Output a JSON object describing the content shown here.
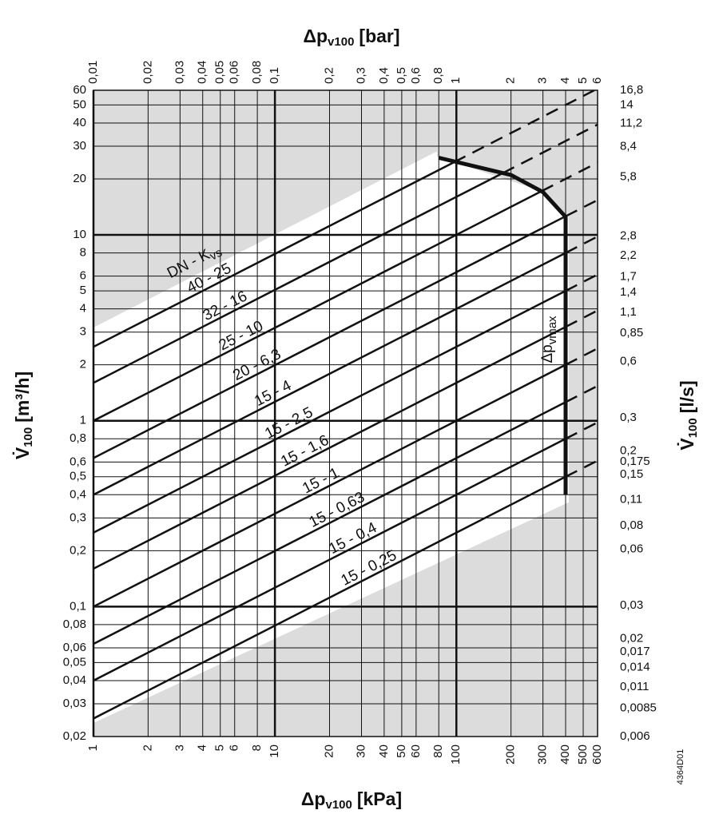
{
  "chart_data": {
    "type": "line",
    "x_axis_title": {
      "text": "Δp",
      "sub": "v100",
      "unit": "[kPa]"
    },
    "x2_axis_title": {
      "text": "Δp",
      "sub": "v100",
      "unit": "[bar]"
    },
    "y_axis_title": {
      "text": "V̇",
      "sub": "100",
      "unit": "[m³/h]"
    },
    "y2_axis_title": {
      "text": "V̇",
      "sub": "100",
      "unit": "[l/s]"
    },
    "log_x": true,
    "log_y": true,
    "grid": true,
    "xlim": [
      1,
      600
    ],
    "xticks": [
      1,
      2,
      3,
      4,
      5,
      6,
      8,
      10,
      20,
      30,
      40,
      50,
      60,
      80,
      100,
      200,
      300,
      400,
      500,
      600
    ],
    "x2lim": [
      0.01,
      6
    ],
    "x2ticks": [
      {
        "value": 0.01,
        "label": "0,01"
      },
      {
        "value": 0.02,
        "label": "0,02"
      },
      {
        "value": 0.03,
        "label": "0,03"
      },
      {
        "value": 0.04,
        "label": "0,04"
      },
      {
        "value": 0.05,
        "label": "0,05"
      },
      {
        "value": 0.06,
        "label": "0,06"
      },
      {
        "value": 0.08,
        "label": "0,08"
      },
      {
        "value": 0.1,
        "label": "0,1"
      },
      {
        "value": 0.2,
        "label": "0,2"
      },
      {
        "value": 0.3,
        "label": "0,3"
      },
      {
        "value": 0.4,
        "label": "0,4"
      },
      {
        "value": 0.5,
        "label": "0,5"
      },
      {
        "value": 0.6,
        "label": "0,6"
      },
      {
        "value": 0.8,
        "label": "0,8"
      },
      1,
      2,
      3,
      4,
      5,
      6
    ],
    "ylim": [
      0.02,
      60
    ],
    "yticks": [
      60,
      50,
      40,
      30,
      20,
      10,
      8,
      6,
      5,
      4,
      3,
      2,
      1,
      {
        "value": 0.8,
        "label": "0,8"
      },
      {
        "value": 0.6,
        "label": "0,6"
      },
      {
        "value": 0.5,
        "label": "0,5"
      },
      {
        "value": 0.4,
        "label": "0,4"
      },
      {
        "value": 0.3,
        "label": "0,3"
      },
      {
        "value": 0.2,
        "label": "0,2"
      },
      {
        "value": 0.1,
        "label": "0,1"
      },
      {
        "value": 0.08,
        "label": "0,08"
      },
      {
        "value": 0.06,
        "label": "0,06"
      },
      {
        "value": 0.05,
        "label": "0,05"
      },
      {
        "value": 0.04,
        "label": "0,04"
      },
      {
        "value": 0.03,
        "label": "0,03"
      },
      {
        "value": 0.02,
        "label": "0,02"
      }
    ],
    "y2lim": [
      0.006,
      16.8
    ],
    "y2ticks": [
      {
        "value": 16.8,
        "label": "16,8"
      },
      14,
      {
        "value": 11.2,
        "label": "11,2"
      },
      {
        "value": 8.4,
        "label": "8,4"
      },
      {
        "value": 5.8,
        "label": "5,8"
      },
      {
        "value": 2.8,
        "label": "2,8"
      },
      {
        "value": 2.2,
        "label": "2,2"
      },
      {
        "value": 1.7,
        "label": "1,7"
      },
      {
        "value": 1.4,
        "label": "1,4"
      },
      {
        "value": 1.1,
        "label": "1,1"
      },
      {
        "value": 0.85,
        "label": "0,85"
      },
      {
        "value": 0.6,
        "label": "0,6"
      },
      {
        "value": 0.3,
        "label": "0,3"
      },
      {
        "value": 0.2,
        "label": "0,2"
      },
      {
        "value": 0.175,
        "label": "0,175"
      },
      {
        "value": 0.15,
        "label": "0,15"
      },
      {
        "value": 0.11,
        "label": "0,11"
      },
      {
        "value": 0.08,
        "label": "0,08"
      },
      {
        "value": 0.06,
        "label": "0,06"
      },
      {
        "value": 0.03,
        "label": "0,03"
      },
      {
        "value": 0.02,
        "label": "0,02"
      },
      {
        "value": 0.017,
        "label": "0,017"
      },
      {
        "value": 0.014,
        "label": "0,014"
      },
      {
        "value": 0.011,
        "label": "0,011"
      },
      {
        "value": 0.0085,
        "label": "0,0085"
      },
      {
        "value": 0.006,
        "label": "0,006"
      }
    ],
    "legend_title": {
      "text": "DN - K",
      "sub": "vs"
    },
    "segments": [
      "solid",
      "dashed"
    ],
    "line_color": "#111111",
    "shade_color": "#dcdcdc",
    "series": [
      {
        "name": "40 - 25",
        "x": [
          1,
          97,
          576
        ],
        "values": [
          2.5,
          24.6,
          60
        ]
      },
      {
        "name": "32 - 16",
        "x": [
          1,
          180,
          600
        ],
        "values": [
          1.6,
          21.5,
          39.2
        ]
      },
      {
        "name": "25 - 10",
        "x": [
          1,
          295,
          600
        ],
        "values": [
          1,
          17.2,
          24.5
        ]
      },
      {
        "name": "20 - 6,3",
        "x": [
          1,
          400,
          600
        ],
        "values": [
          0.63,
          12.6,
          15.4
        ]
      },
      {
        "name": "15 - 4",
        "x": [
          1,
          400,
          600
        ],
        "values": [
          0.4,
          8,
          9.8
        ]
      },
      {
        "name": "15 - 2,5",
        "x": [
          1,
          400,
          600
        ],
        "values": [
          0.25,
          5,
          6.12
        ]
      },
      {
        "name": "15 - 1,6",
        "x": [
          1,
          400,
          600
        ],
        "values": [
          0.16,
          3.2,
          3.92
        ]
      },
      {
        "name": "15 - 1",
        "x": [
          1,
          400,
          600
        ],
        "values": [
          0.1,
          2,
          2.45
        ]
      },
      {
        "name": "15 - 0,63",
        "x": [
          1,
          400,
          600
        ],
        "values": [
          0.063,
          1.26,
          1.54
        ]
      },
      {
        "name": "15 - 0,4",
        "x": [
          1,
          400,
          600
        ],
        "values": [
          0.04,
          0.8,
          0.98
        ]
      },
      {
        "name": "15 - 0,25",
        "x": [
          1,
          400,
          600
        ],
        "values": [
          0.025,
          0.5,
          0.61
        ]
      }
    ],
    "vmax_curve": {
      "label": "Δp",
      "label_sub": "vmax",
      "x": [
        80,
        200,
        300,
        400,
        400
      ],
      "values": [
        26,
        21,
        17,
        12.5,
        0.4
      ]
    },
    "figure_id": "4364D01"
  }
}
